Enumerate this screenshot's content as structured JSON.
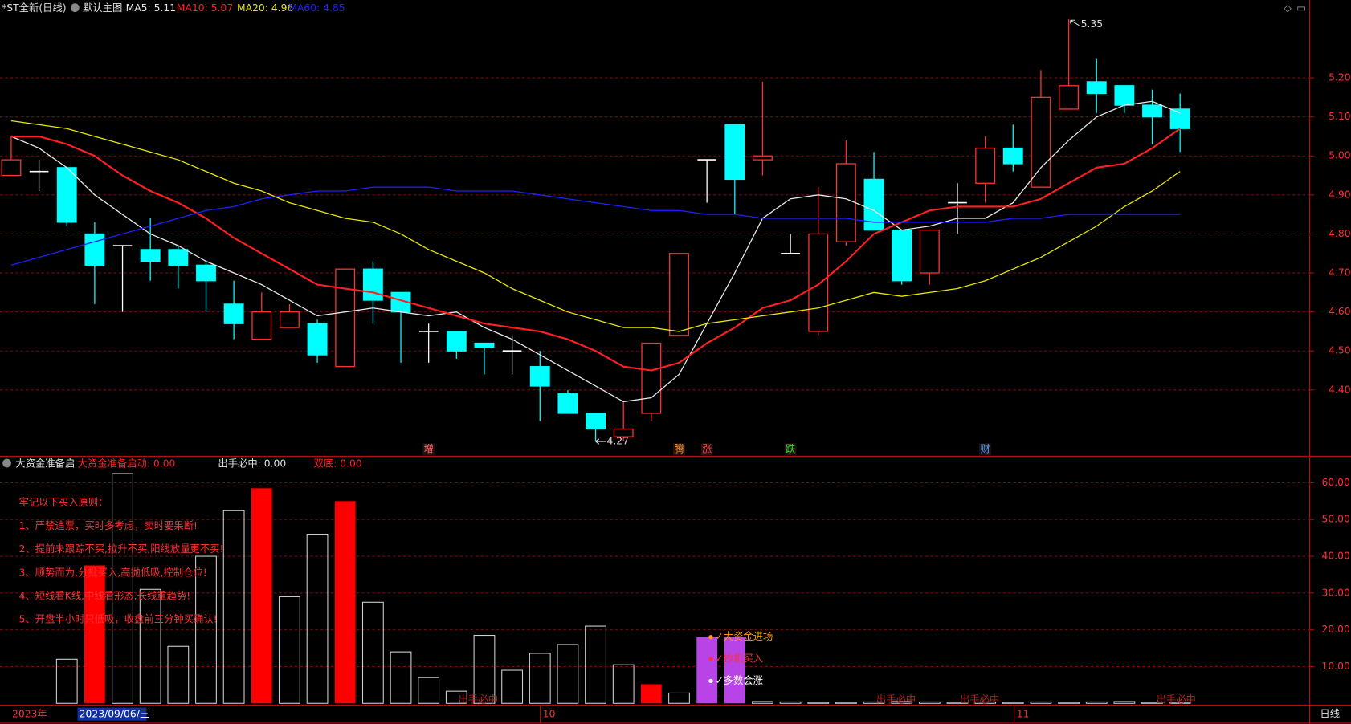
{
  "header": {
    "title": "*ST全新(日线)",
    "template": "默认主图",
    "panel_title": "大资金准备启",
    "panel_values": [
      "大资金准备启动: 0.00",
      "出手必中: 0.00",
      "双底: 0.00"
    ],
    "time_axis": [
      "2023年",
      "2023/09/06/三",
      "10",
      "11"
    ],
    "period": "日线"
  },
  "chart_data": [
    {
      "type": "candlestick",
      "ylim": [
        4.23,
        5.36
      ],
      "yticks": [
        {
          "value": 5.2,
          "label": "5.20"
        },
        {
          "value": 5.1,
          "label": "5.10"
        },
        {
          "value": 5.0,
          "label": "5.00"
        },
        {
          "value": 4.9,
          "label": "4.90"
        },
        {
          "value": 4.8,
          "label": "4.80"
        },
        {
          "value": 4.7,
          "label": "4.70"
        },
        {
          "value": 4.6,
          "label": "4.60"
        },
        {
          "value": 4.5,
          "label": "4.50"
        },
        {
          "value": 4.4,
          "label": "4.40"
        }
      ],
      "grid": true,
      "up_color": "#ff3232",
      "down_color": "#00ffff",
      "flat_color": "#ffffff",
      "ohlc": {
        "open": [
          4.95,
          4.96,
          4.97,
          4.8,
          4.77,
          4.76,
          4.76,
          4.72,
          4.62,
          4.53,
          4.56,
          4.57,
          4.46,
          4.71,
          4.65,
          4.55,
          4.55,
          4.52,
          4.5,
          4.46,
          4.39,
          4.34,
          4.28,
          4.34,
          4.54,
          4.99,
          5.08,
          4.99,
          4.75,
          4.55,
          4.78,
          4.94,
          4.81,
          4.7,
          4.88,
          4.93,
          5.02,
          4.92,
          5.12,
          5.19,
          5.18,
          5.13,
          5.12
        ],
        "high": [
          5.05,
          4.99,
          4.97,
          4.83,
          4.77,
          4.84,
          4.77,
          4.73,
          4.68,
          4.65,
          4.62,
          4.58,
          4.71,
          4.73,
          4.65,
          4.57,
          4.55,
          4.52,
          4.54,
          4.5,
          4.4,
          4.34,
          4.37,
          4.52,
          4.75,
          4.99,
          5.08,
          5.19,
          4.8,
          4.92,
          5.04,
          5.01,
          4.81,
          4.81,
          4.93,
          5.05,
          5.08,
          5.22,
          5.35,
          5.25,
          5.18,
          5.17,
          5.16
        ],
        "low": [
          4.95,
          4.91,
          4.82,
          4.62,
          4.6,
          4.68,
          4.66,
          4.6,
          4.53,
          4.53,
          4.56,
          4.47,
          4.46,
          4.57,
          4.47,
          4.47,
          4.48,
          4.44,
          4.44,
          4.32,
          4.34,
          4.27,
          4.27,
          4.32,
          4.54,
          4.88,
          4.85,
          4.95,
          4.75,
          4.54,
          4.77,
          4.81,
          4.67,
          4.67,
          4.8,
          4.88,
          4.96,
          4.92,
          5.12,
          5.11,
          5.11,
          5.03,
          5.01
        ],
        "close": [
          4.99,
          4.96,
          4.83,
          4.72,
          4.77,
          4.73,
          4.72,
          4.68,
          4.57,
          4.6,
          4.6,
          4.49,
          4.71,
          4.63,
          4.6,
          4.55,
          4.5,
          4.51,
          4.5,
          4.41,
          4.34,
          4.3,
          4.3,
          4.52,
          4.75,
          4.99,
          4.94,
          5.0,
          4.75,
          4.8,
          4.98,
          4.81,
          4.68,
          4.81,
          4.88,
          5.02,
          4.98,
          5.15,
          5.18,
          5.16,
          5.13,
          5.1,
          5.07
        ]
      },
      "series": [
        {
          "name": "MA5: 5.11",
          "color": "#e8e8e8",
          "values": [
            5.05,
            5.02,
            4.97,
            4.9,
            4.85,
            4.8,
            4.77,
            4.73,
            4.7,
            4.67,
            4.63,
            4.59,
            4.6,
            4.61,
            4.6,
            4.59,
            4.6,
            4.56,
            4.53,
            4.49,
            4.45,
            4.41,
            4.37,
            4.38,
            4.44,
            4.57,
            4.7,
            4.84,
            4.89,
            4.9,
            4.89,
            4.86,
            4.81,
            4.82,
            4.84,
            4.84,
            4.88,
            4.97,
            5.04,
            5.1,
            5.13,
            5.14,
            5.11
          ]
        },
        {
          "name": "MA10: 5.07",
          "color": "#ff2020",
          "values": [
            5.05,
            5.05,
            5.03,
            5.0,
            4.95,
            4.91,
            4.88,
            4.84,
            4.79,
            4.75,
            4.71,
            4.67,
            4.66,
            4.65,
            4.63,
            4.61,
            4.59,
            4.57,
            4.56,
            4.55,
            4.53,
            4.5,
            4.46,
            4.45,
            4.47,
            4.52,
            4.56,
            4.61,
            4.63,
            4.67,
            4.73,
            4.8,
            4.83,
            4.86,
            4.87,
            4.87,
            4.87,
            4.89,
            4.93,
            4.97,
            4.98,
            5.02,
            5.07
          ]
        },
        {
          "name": "MA20: 4.96",
          "color": "#e8e800",
          "values": [
            5.09,
            5.08,
            5.07,
            5.05,
            5.03,
            5.01,
            4.99,
            4.96,
            4.93,
            4.91,
            4.88,
            4.86,
            4.84,
            4.83,
            4.8,
            4.76,
            4.73,
            4.7,
            4.66,
            4.63,
            4.6,
            4.58,
            4.56,
            4.56,
            4.55,
            4.57,
            4.58,
            4.59,
            4.6,
            4.61,
            4.63,
            4.65,
            4.64,
            4.65,
            4.66,
            4.68,
            4.71,
            4.74,
            4.78,
            4.82,
            4.87,
            4.91,
            4.96
          ]
        },
        {
          "name": "MA60: 4.85",
          "color": "#2020ff",
          "values": [
            4.72,
            4.74,
            4.76,
            4.78,
            4.8,
            4.82,
            4.84,
            4.86,
            4.87,
            4.89,
            4.9,
            4.91,
            4.91,
            4.92,
            4.92,
            4.92,
            4.91,
            4.91,
            4.91,
            4.9,
            4.89,
            4.88,
            4.87,
            4.86,
            4.86,
            4.85,
            4.85,
            4.84,
            4.84,
            4.84,
            4.84,
            4.83,
            4.83,
            4.83,
            4.83,
            4.83,
            4.84,
            4.84,
            4.85,
            4.85,
            4.85,
            4.85,
            4.85
          ]
        }
      ],
      "annotations": [
        5.35,
        4.27
      ],
      "signals": [
        null,
        null,
        null,
        null,
        null,
        null,
        null,
        null,
        null,
        null,
        null,
        null,
        null,
        null,
        null,
        "增",
        null,
        null,
        null,
        null,
        null,
        null,
        null,
        null,
        "腾",
        "涨",
        null,
        null,
        "跌",
        null,
        null,
        null,
        null,
        null,
        null,
        "财",
        null,
        null,
        null,
        null,
        null,
        null,
        null
      ],
      "signal_colors": [
        null,
        null,
        null,
        null,
        null,
        null,
        null,
        null,
        null,
        null,
        null,
        null,
        null,
        null,
        null,
        "#ff6060",
        null,
        null,
        null,
        null,
        null,
        null,
        null,
        null,
        "#ff9a30",
        "#ff4040",
        null,
        null,
        "#30e030",
        null,
        null,
        null,
        null,
        null,
        null,
        "#40a0ff",
        null,
        null,
        null,
        null,
        null,
        null,
        null
      ]
    },
    {
      "type": "bar",
      "ylim": [
        0,
        66.5
      ],
      "yticks": [
        {
          "value": 60,
          "label": "60.00"
        },
        {
          "value": 50,
          "label": "50.00"
        },
        {
          "value": 40,
          "label": "40.00"
        },
        {
          "value": 30,
          "label": "30.00"
        },
        {
          "value": 20,
          "label": "20.00"
        },
        {
          "value": 10,
          "label": "10.00"
        }
      ],
      "grid": true,
      "hollow_color": "#d0d0d0",
      "values": [
        null,
        null,
        12,
        37.5,
        62.5,
        31,
        15.5,
        40,
        52.4,
        58.5,
        29,
        46,
        55,
        27.5,
        14,
        7,
        3.3,
        18.5,
        9,
        13.6,
        16,
        21,
        10.5,
        5.2,
        2.8,
        18,
        18,
        0.5,
        0.4,
        0.3,
        0.3,
        0.4,
        0.5,
        0.4,
        0.3,
        0.4,
        0.3,
        0.4,
        0.3,
        0.4,
        0.5,
        0.3,
        0.3
      ],
      "colors": [
        "#d0d0d0",
        "#d0d0d0",
        "#d0d0d0",
        "#ff0000",
        "#d0d0d0",
        "#d0d0d0",
        "#d0d0d0",
        "#d0d0d0",
        "#d0d0d0",
        "#ff0000",
        "#d0d0d0",
        "#d0d0d0",
        "#ff0000",
        "#d0d0d0",
        "#d0d0d0",
        "#d0d0d0",
        "#d0d0d0",
        "#d0d0d0",
        "#d0d0d0",
        "#d0d0d0",
        "#d0d0d0",
        "#d0d0d0",
        "#d0d0d0",
        "#ff0000",
        "#d0d0d0",
        "#b844e8",
        "#b844e8",
        "#d0d0d0",
        "#d0d0d0",
        "#d0d0d0",
        "#d0d0d0",
        "#d0d0d0",
        "#d0d0d0",
        "#d0d0d0",
        "#d0d0d0",
        "#d0d0d0",
        "#d0d0d0",
        "#d0d0d0",
        "#d0d0d0",
        "#d0d0d0",
        "#d0d0d0",
        "#d0d0d0",
        "#d0d0d0"
      ],
      "notes": [
        "牢记以下买入原则：",
        "1、严禁追票，买时多考虑，卖时要果断!",
        "2、提前未跟踪不买,拉升不买,阳线放量更不买!",
        "3、顺势而为,分批买入,高抛低吸,控制仓位!",
        "4、短线看K线,中线看形态,长线重趋势!",
        "5、开盘半小时只低吸，收盘前三分钟买确认!"
      ],
      "signal_labels": [
        "✓大资金进场",
        "✓抄机买入",
        "✓多数会涨"
      ],
      "bottom_labels": [
        "出手必中",
        "出手必中",
        "出手必中",
        "出手必中"
      ]
    }
  ]
}
